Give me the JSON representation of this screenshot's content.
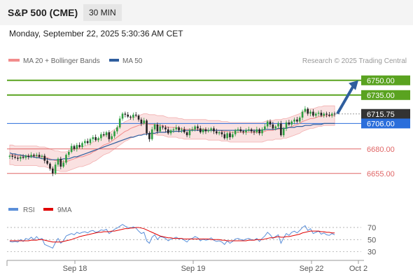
{
  "header": {
    "symbol": "S&P 500 (CME)",
    "timeframe": "30 MIN"
  },
  "timestamp": "Monday, September 22, 2025 5:30:36 AM CET",
  "legend": {
    "bb": "MA 20 + Bollinger Bands",
    "ma50": "MA 50",
    "copyright": "Research © 2025 Trading Central",
    "rsi": "RSI",
    "ma9": "9MA"
  },
  "colors": {
    "up": "#2e9e41",
    "down": "#222222",
    "band": "#f6c8c8",
    "ma20": "#f28c8c",
    "ma50": "#2f5e9e",
    "resistance": "#5aa320",
    "support": "#e06666",
    "pivot": "#2a6edb",
    "last": "#333333",
    "rsi": "#5b8fd9",
    "rsi_ma": "#e00000",
    "arrow": "#2f5e9e"
  },
  "chart_data": {
    "type": "candlestick",
    "x_labels": [
      "Sep 18",
      "Sep 19",
      "Sep 22",
      "Oct 2"
    ],
    "y_range": [
      6632,
      6762
    ],
    "levels": [
      {
        "value": 6750.0,
        "label": "6750.00",
        "kind": "resistance"
      },
      {
        "value": 6735.0,
        "label": "6735.00",
        "kind": "resistance"
      },
      {
        "value": 6715.75,
        "label": "6715.75",
        "kind": "last"
      },
      {
        "value": 6706.0,
        "label": "6706.00",
        "kind": "pivot"
      },
      {
        "value": 6680.0,
        "label": "6680.00",
        "kind": "support"
      },
      {
        "value": 6655.0,
        "label": "6655.00",
        "kind": "support"
      }
    ],
    "forecast": {
      "from": 6716,
      "to": 6750
    },
    "closes": [
      6673,
      6672,
      6671,
      6670,
      6672,
      6671,
      6673,
      6672,
      6674,
      6673,
      6674,
      6672,
      6673,
      6668,
      6665,
      6660,
      6655,
      6664,
      6670,
      6662,
      6666,
      6674,
      6677,
      6683,
      6680,
      6684,
      6682,
      6686,
      6688,
      6686,
      6690,
      6692,
      6689,
      6691,
      6695,
      6694,
      6697,
      6690,
      6693,
      6698,
      6702,
      6711,
      6716,
      6715,
      6713,
      6712,
      6715,
      6714,
      6710,
      6706,
      6709,
      6696,
      6690,
      6700,
      6705,
      6698,
      6703,
      6702,
      6700,
      6696,
      6699,
      6700,
      6702,
      6699,
      6700,
      6697,
      6694,
      6699,
      6700,
      6703,
      6701,
      6697,
      6700,
      6698,
      6699,
      6701,
      6698,
      6696,
      6697,
      6695,
      6691,
      6696,
      6692,
      6695,
      6699,
      6700,
      6698,
      6697,
      6699,
      6700,
      6698,
      6697,
      6700,
      6696,
      6700,
      6703,
      6708,
      6705,
      6701,
      6703,
      6706,
      6694,
      6701,
      6707,
      6705,
      6708,
      6710,
      6708,
      6712,
      6718,
      6721,
      6716,
      6718,
      6714,
      6716,
      6717,
      6714,
      6716,
      6715,
      6714,
      6716,
      6715.75
    ],
    "ma20": [
      6674,
      6674,
      6673,
      6673,
      6673,
      6673,
      6673,
      6673,
      6673,
      6673,
      6673,
      6672,
      6672,
      6672,
      6671,
      6670,
      6669,
      6668,
      6668,
      6667,
      6667,
      6667,
      6668,
      6669,
      6670,
      6671,
      6672,
      6672,
      6673,
      6674,
      6675,
      6677,
      6678,
      6680,
      6682,
      6684,
      6685,
      6686,
      6688,
      6690,
      6692,
      6694,
      6696,
      6698,
      6699,
      6701,
      6702,
      6703,
      6704,
      6705,
      6706,
      6706,
      6705,
      6705,
      6705,
      6704,
      6704,
      6704,
      6703,
      6702,
      6702,
      6702,
      6702,
      6701,
      6701,
      6700,
      6700,
      6700,
      6700,
      6700,
      6700,
      6700,
      6700,
      6700,
      6699,
      6699,
      6699,
      6699,
      6699,
      6698,
      6698,
      6698,
      6697,
      6697,
      6697,
      6697,
      6697,
      6697,
      6697,
      6697,
      6697,
      6697,
      6697,
      6697,
      6697,
      6698,
      6699,
      6699,
      6699,
      6700,
      6700,
      6700,
      6701,
      6701,
      6702,
      6703,
      6704,
      6705,
      6706,
      6708,
      6709,
      6710,
      6711,
      6711,
      6712,
      6713,
      6713,
      6714,
      6714,
      6714,
      6714,
      6714
    ],
    "ma50": [
      6676,
      6675,
      6675,
      6674,
      6674,
      6673,
      6673,
      6672,
      6672,
      6672,
      6671,
      6671,
      6670,
      6670,
      6670,
      6669,
      6669,
      6669,
      6669,
      6669,
      6670,
      6670,
      6670,
      6671,
      6672,
      6672,
      6673,
      6674,
      6675,
      6676,
      6677,
      6678,
      6679,
      6680,
      6681,
      6682,
      6683,
      6684,
      6685,
      6686,
      6687,
      6688,
      6689,
      6690,
      6691,
      6692,
      6692,
      6693,
      6694,
      6694,
      6695,
      6695,
      6696,
      6696,
      6696,
      6697,
      6697,
      6697,
      6697,
      6698,
      6698,
      6698,
      6698,
      6698,
      6698,
      6699,
      6699,
      6699,
      6699,
      6699,
      6699,
      6699,
      6699,
      6699,
      6699,
      6699,
      6699,
      6699,
      6699,
      6699,
      6699,
      6699,
      6699,
      6699,
      6699,
      6699,
      6699,
      6699,
      6699,
      6699,
      6699,
      6699,
      6699,
      6699,
      6699,
      6700,
      6700,
      6700,
      6700,
      6700,
      6701,
      6701,
      6701,
      6701,
      6702,
      6702,
      6702,
      6703,
      6703,
      6703,
      6704,
      6704,
      6704,
      6705,
      6705,
      6705,
      6705,
      6706,
      6706,
      6706,
      6706,
      6706
    ],
    "band_width": 10,
    "rsi": {
      "ticks": [
        70,
        50,
        30
      ],
      "y_range": [
        25,
        78
      ],
      "rsi_values": [
        47,
        46,
        47,
        46,
        50,
        47,
        52,
        50,
        54,
        50,
        55,
        50,
        52,
        42,
        40,
        38,
        36,
        45,
        52,
        44,
        48,
        56,
        58,
        60,
        58,
        62,
        60,
        62,
        63,
        61,
        64,
        65,
        62,
        63,
        66,
        65,
        67,
        60,
        63,
        67,
        69,
        72,
        75,
        72,
        70,
        69,
        71,
        69,
        64,
        60,
        62,
        48,
        44,
        54,
        58,
        50,
        55,
        54,
        52,
        48,
        51,
        52,
        54,
        51,
        52,
        49,
        46,
        51,
        52,
        55,
        53,
        48,
        51,
        49,
        50,
        53,
        49,
        47,
        48,
        46,
        42,
        48,
        44,
        47,
        51,
        52,
        50,
        49,
        51,
        52,
        50,
        49,
        52,
        47,
        52,
        56,
        62,
        58,
        52,
        55,
        58,
        44,
        53,
        60,
        57,
        62,
        64,
        61,
        65,
        70,
        73,
        65,
        68,
        60,
        62,
        64,
        59,
        61,
        58,
        57,
        60,
        58
      ],
      "ma9_values": [
        48,
        48,
        48,
        48,
        48,
        48,
        48,
        48,
        49,
        49,
        49,
        50,
        50,
        49,
        48,
        47,
        46,
        46,
        46,
        46,
        47,
        48,
        49,
        50,
        52,
        53,
        55,
        56,
        57,
        58,
        59,
        60,
        61,
        62,
        62,
        63,
        63,
        63,
        64,
        64,
        65,
        66,
        67,
        68,
        68,
        69,
        69,
        70,
        70,
        69,
        68,
        66,
        64,
        62,
        60,
        58,
        56,
        55,
        54,
        53,
        53,
        52,
        52,
        52,
        52,
        51,
        51,
        51,
        51,
        51,
        51,
        51,
        51,
        51,
        51,
        50,
        50,
        50,
        50,
        49,
        49,
        48,
        48,
        48,
        48,
        48,
        48,
        48,
        48,
        49,
        49,
        49,
        50,
        50,
        50,
        51,
        52,
        53,
        53,
        54,
        55,
        54,
        54,
        55,
        55,
        56,
        57,
        58,
        59,
        61,
        62,
        63,
        64,
        64,
        64,
        64,
        63,
        63,
        62,
        62,
        61,
        61
      ]
    }
  }
}
